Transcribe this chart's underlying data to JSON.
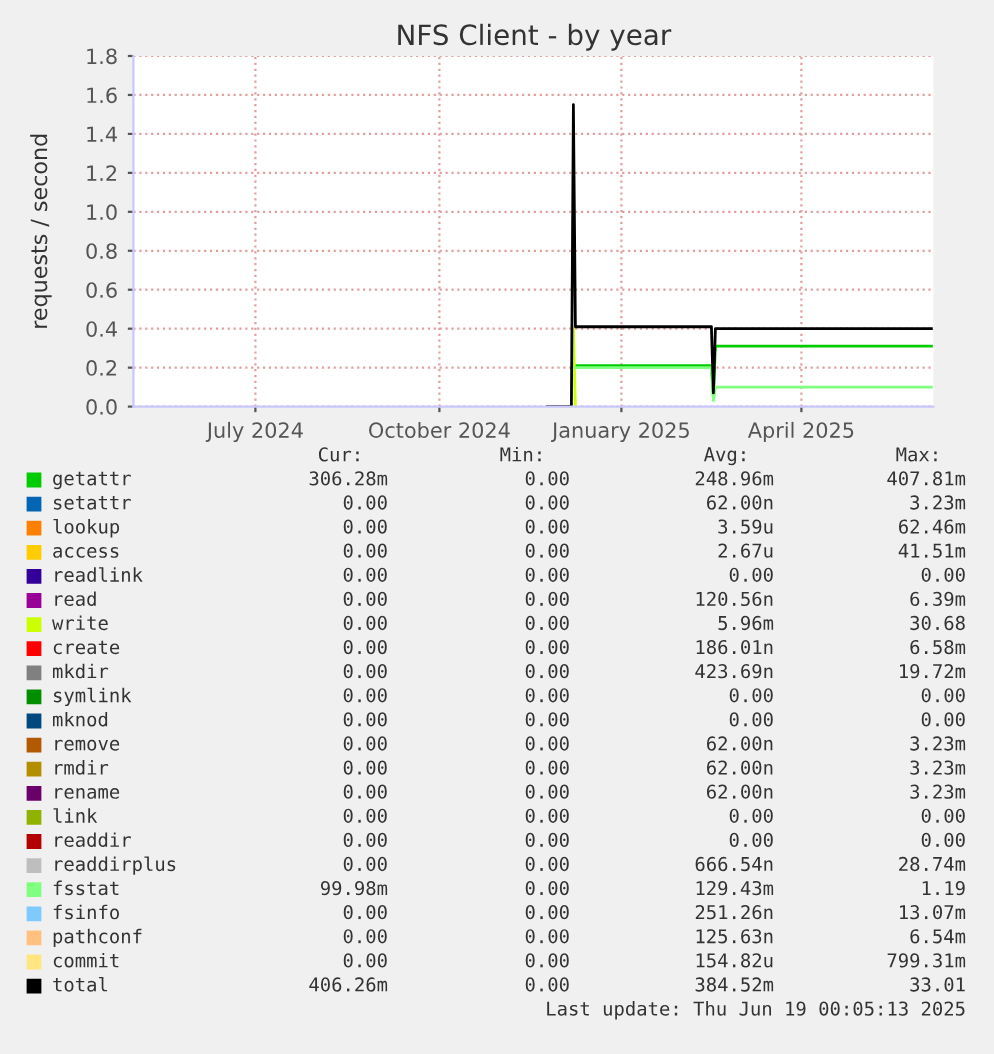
{
  "chart_data": {
    "type": "line",
    "title": "NFS Client - by year",
    "ylabel": "requests / second",
    "x": [
      "2024-12-08",
      "2024-12-20",
      "2024-12-21",
      "2024-12-22",
      "2025-02-28",
      "2025-03-01",
      "2025-03-02",
      "2025-06-18"
    ],
    "xlim": [
      "2024-05-15",
      "2025-06-19"
    ],
    "xticks": [
      {
        "value": "2024-07-15",
        "label": "July 2024"
      },
      {
        "value": "2024-10-15",
        "label": "October 2024"
      },
      {
        "value": "2025-01-14",
        "label": "January 2025"
      },
      {
        "value": "2025-04-14",
        "label": "April 2025"
      }
    ],
    "ylim": [
      0,
      1.8
    ],
    "yticks": [
      {
        "value": 0,
        "label": "0.0"
      },
      0.2,
      0.4,
      0.6,
      0.8,
      {
        "value": 1,
        "label": "1.0"
      },
      1.2,
      1.4,
      1.6,
      1.8
    ],
    "grid": true,
    "legend": "bottom",
    "marker": "none",
    "line_style": "solid",
    "series": [
      {
        "name": "getattr",
        "color": "#00cc00",
        "values": [
          null,
          null,
          null,
          0.21,
          0.21,
          0.05,
          0.31,
          0.31
        ]
      },
      {
        "name": "setattr",
        "color": "#0066b3",
        "values": [
          null,
          null,
          null,
          null,
          null,
          null,
          null,
          null
        ]
      },
      {
        "name": "lookup",
        "color": "#ff8000",
        "values": [
          null,
          null,
          null,
          null,
          null,
          null,
          null,
          null
        ]
      },
      {
        "name": "access",
        "color": "#ffcc00",
        "values": [
          null,
          null,
          null,
          null,
          null,
          null,
          null,
          null
        ]
      },
      {
        "name": "readlink",
        "color": "#330099",
        "values": [
          null,
          null,
          null,
          null,
          null,
          null,
          null,
          null
        ]
      },
      {
        "name": "read",
        "color": "#990099",
        "values": [
          null,
          null,
          null,
          null,
          null,
          null,
          null,
          null
        ]
      },
      {
        "name": "write",
        "color": "#ccff00",
        "x": [
          "2024-12-21",
          "2024-12-22"
        ],
        "values": [
          0.4,
          0.0
        ]
      },
      {
        "name": "create",
        "color": "#ff0000",
        "values": [
          null,
          null,
          null,
          null,
          null,
          null,
          null,
          null
        ]
      },
      {
        "name": "mkdir",
        "color": "#808080",
        "values": [
          null,
          null,
          null,
          null,
          null,
          null,
          null,
          null
        ]
      },
      {
        "name": "symlink",
        "color": "#008f00",
        "values": [
          null,
          null,
          null,
          null,
          null,
          null,
          null,
          null
        ]
      },
      {
        "name": "mknod",
        "color": "#00487d",
        "values": [
          null,
          null,
          null,
          null,
          null,
          null,
          null,
          null
        ]
      },
      {
        "name": "remove",
        "color": "#b35a00",
        "values": [
          null,
          null,
          null,
          null,
          null,
          null,
          null,
          null
        ]
      },
      {
        "name": "rmdir",
        "color": "#b38f00",
        "values": [
          null,
          null,
          null,
          null,
          null,
          null,
          null,
          null
        ]
      },
      {
        "name": "rename",
        "color": "#6b006b",
        "values": [
          null,
          null,
          null,
          null,
          null,
          null,
          null,
          null
        ]
      },
      {
        "name": "link",
        "color": "#8fb300",
        "values": [
          null,
          null,
          null,
          null,
          null,
          null,
          null,
          null
        ]
      },
      {
        "name": "readdir",
        "color": "#b30000",
        "values": [
          null,
          null,
          null,
          null,
          null,
          null,
          null,
          null
        ]
      },
      {
        "name": "readdirplus",
        "color": "#bebebe",
        "values": [
          null,
          null,
          null,
          null,
          null,
          null,
          null,
          null
        ]
      },
      {
        "name": "fsstat",
        "color": "#80ff80",
        "values": [
          null,
          null,
          null,
          0.2,
          0.2,
          0.03,
          0.1,
          0.1
        ]
      },
      {
        "name": "fsinfo",
        "color": "#80c9ff",
        "values": [
          null,
          null,
          null,
          null,
          null,
          null,
          null,
          null
        ]
      },
      {
        "name": "pathconf",
        "color": "#ffc080",
        "values": [
          null,
          null,
          null,
          null,
          null,
          null,
          null,
          null
        ]
      },
      {
        "name": "commit",
        "color": "#ffe680",
        "values": [
          null,
          null,
          null,
          null,
          null,
          null,
          null,
          null
        ]
      },
      {
        "name": "total",
        "color": "#000000",
        "values": [
          0,
          0,
          1.55,
          0.41,
          0.41,
          0.07,
          0.4,
          0.4
        ]
      }
    ],
    "annotations": [
      "Cur:",
      "Min:",
      "Avg:",
      "Max:",
      "306.28m",
      "0.00",
      "248.96m",
      "407.81m",
      "0.00",
      "0.00",
      "62.00n",
      "3.23m",
      "0.00",
      "0.00",
      "3.59u",
      "62.46m",
      "0.00",
      "0.00",
      "2.67u",
      "41.51m",
      "0.00",
      "0.00",
      "0.00",
      "0.00",
      "0.00",
      "0.00",
      "120.56n",
      "6.39m",
      "0.00",
      "0.00",
      "5.96m",
      "30.68",
      "0.00",
      "0.00",
      "186.01n",
      "6.58m",
      "0.00",
      "0.00",
      "423.69n",
      "19.72m",
      "0.00",
      "0.00",
      "0.00",
      "0.00",
      "0.00",
      "0.00",
      "0.00",
      "0.00",
      "0.00",
      "0.00",
      "62.00n",
      "3.23m",
      "0.00",
      "0.00",
      "62.00n",
      "3.23m",
      "0.00",
      "0.00",
      "62.00n",
      "3.23m",
      "0.00",
      "0.00",
      "0.00",
      "0.00",
      "0.00",
      "0.00",
      "0.00",
      "0.00",
      "0.00",
      "0.00",
      "666.54n",
      "28.74m",
      "99.98m",
      "0.00",
      "129.43m",
      "1.19",
      "0.00",
      "0.00",
      "251.26n",
      "13.07m",
      "0.00",
      "0.00",
      "125.63n",
      "6.54m",
      "0.00",
      "0.00",
      "154.82u",
      "799.31m",
      "406.26m",
      "0.00",
      "384.52m",
      "33.01",
      "Last update: Thu Jun 19 00:05:13 2025"
    ]
  }
}
